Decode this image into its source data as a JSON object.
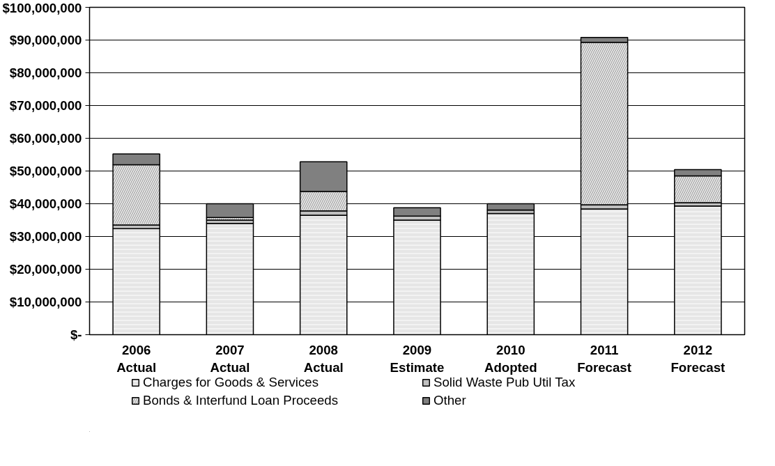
{
  "chart_data": {
    "type": "bar",
    "stacked": true,
    "categories": [
      "2006\nActual",
      "2007\nActual",
      "2008\nActual",
      "2009\nEstimate",
      "2010\nAdopted",
      "2011\nForecast",
      "2012\nForecast"
    ],
    "series": [
      {
        "name": "Charges for Goods & Services",
        "color": "#e6e6e6",
        "values": [
          32400000,
          34000000,
          36500000,
          35000000,
          37000000,
          38400000,
          39300000
        ]
      },
      {
        "name": "Solid Waste Pub Util Tax",
        "color": "#c0c0c0",
        "values": [
          1100000,
          1000000,
          1300000,
          1200000,
          1100000,
          1300000,
          1000000
        ]
      },
      {
        "name": "Bonds & Interfund Loan Proceeds",
        "color": "#b3b3b3",
        "values": [
          18400000,
          800000,
          6000000,
          0,
          0,
          49600000,
          8200000
        ]
      },
      {
        "name": "Other",
        "color": "#808080",
        "values": [
          3300000,
          4200000,
          9000000,
          2600000,
          1900000,
          1500000,
          1900000
        ]
      }
    ],
    "ylim": [
      0,
      100000000
    ],
    "yticks": [
      {
        "value": 0,
        "label": "$-"
      },
      {
        "value": 10000000,
        "label": "$10,000,000"
      },
      {
        "value": 20000000,
        "label": "$20,000,000"
      },
      {
        "value": 30000000,
        "label": "$30,000,000"
      },
      {
        "value": 40000000,
        "label": "$40,000,000"
      },
      {
        "value": 50000000,
        "label": "$50,000,000"
      },
      {
        "value": 60000000,
        "label": "$60,000,000"
      },
      {
        "value": 70000000,
        "label": "$70,000,000"
      },
      {
        "value": 80000000,
        "label": "$80,000,000"
      },
      {
        "value": 90000000,
        "label": "$90,000,000"
      },
      {
        "value": 100000000,
        "label": "$100,000,000"
      }
    ],
    "grid": "y",
    "legend": "bottom"
  }
}
